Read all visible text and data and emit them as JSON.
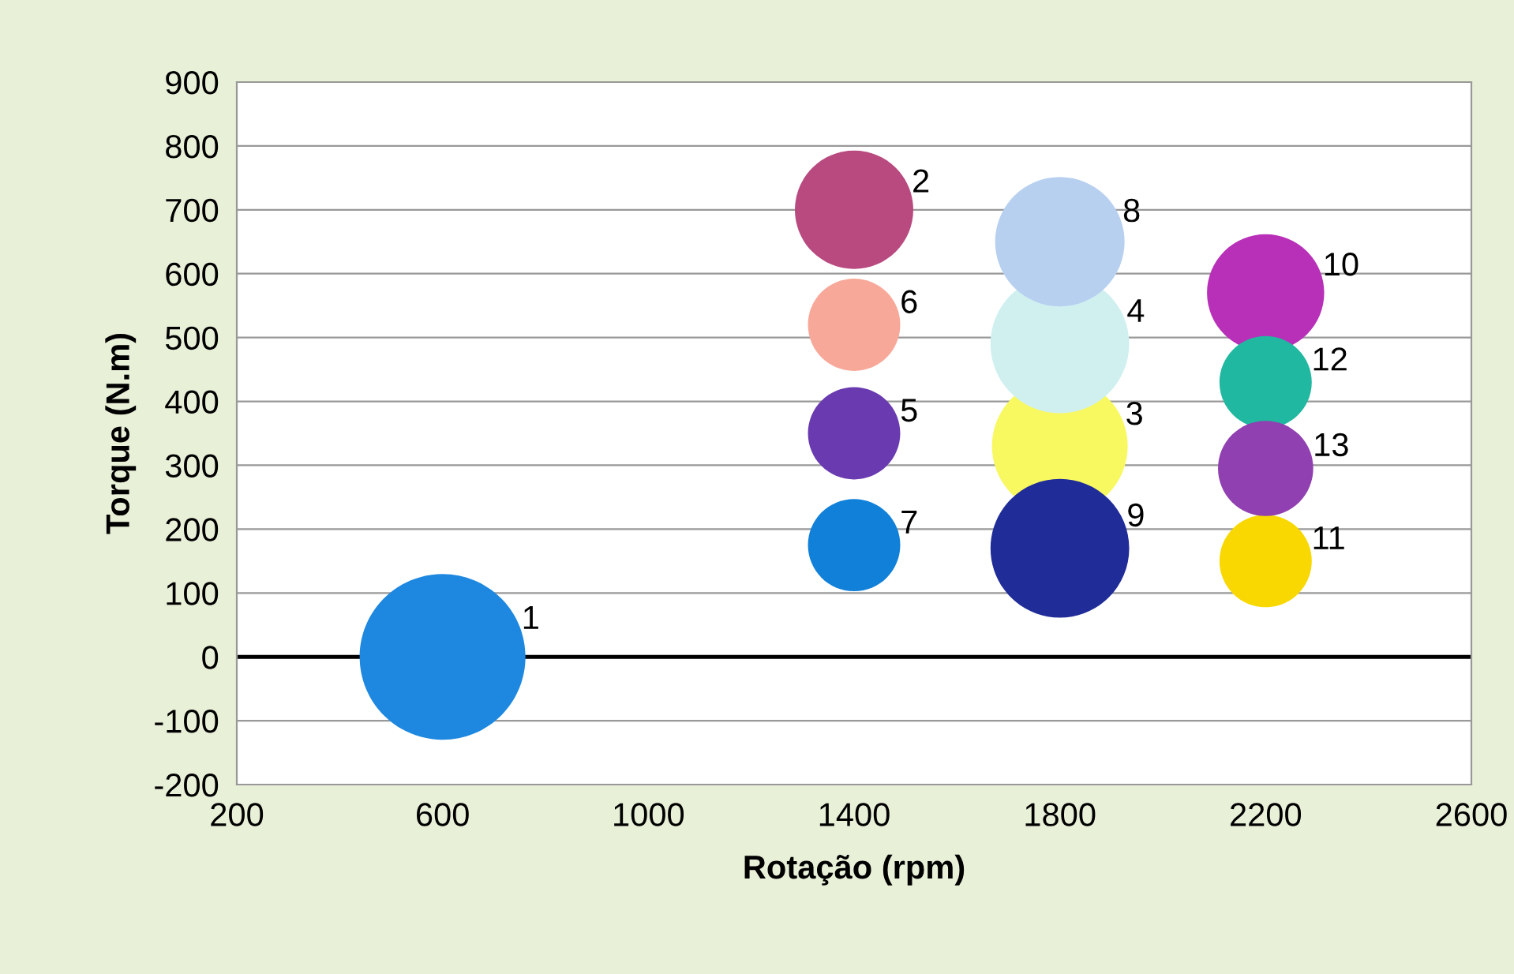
{
  "chart_data": {
    "type": "bubble",
    "xlabel": "Rotação (rpm)",
    "ylabel": "Torque (N.m)",
    "xlim": [
      200,
      2600
    ],
    "xticks": [
      200,
      600,
      1000,
      1400,
      1800,
      2200,
      2600
    ],
    "ylim": [
      -200,
      900
    ],
    "yticks": [
      -200,
      -100,
      0,
      100,
      200,
      300,
      400,
      500,
      600,
      700,
      800,
      900
    ],
    "grid": "y",
    "ref_lines": [
      {
        "axis": "y",
        "value": 0,
        "color": "#000000"
      }
    ],
    "series": [
      {
        "name": "1",
        "color": "#1e88e0",
        "x": [
          600
        ],
        "values": [
          0
        ],
        "sizes": [
          1
        ]
      },
      {
        "name": "2",
        "color": "#b84a80",
        "x": [
          1400
        ],
        "values": [
          700
        ],
        "sizes": [
          0.51
        ]
      },
      {
        "name": "3",
        "color": "#f8f860",
        "x": [
          1800
        ],
        "values": [
          330
        ],
        "sizes": [
          0.67
        ]
      },
      {
        "name": "4",
        "color": "#d0f0f0",
        "x": [
          1800
        ],
        "values": [
          490
        ],
        "sizes": [
          0.7
        ]
      },
      {
        "name": "5",
        "color": "#6a3ab0",
        "x": [
          1400
        ],
        "values": [
          350
        ],
        "sizes": [
          0.31
        ]
      },
      {
        "name": "6",
        "color": "#f8a898",
        "x": [
          1400
        ],
        "values": [
          520
        ],
        "sizes": [
          0.31
        ]
      },
      {
        "name": "7",
        "color": "#1080d8",
        "x": [
          1400
        ],
        "values": [
          175
        ],
        "sizes": [
          0.31
        ]
      },
      {
        "name": "8",
        "color": "#b8d0f0",
        "x": [
          1800
        ],
        "values": [
          650
        ],
        "sizes": [
          0.61
        ]
      },
      {
        "name": "9",
        "color": "#202c98",
        "x": [
          1800
        ],
        "values": [
          170
        ],
        "sizes": [
          0.7
        ]
      },
      {
        "name": "10",
        "color": "#b830b8",
        "x": [
          2200
        ],
        "values": [
          570
        ],
        "sizes": [
          0.5
        ]
      },
      {
        "name": "11",
        "color": "#f8d800",
        "x": [
          2200
        ],
        "values": [
          150
        ],
        "sizes": [
          0.31
        ]
      },
      {
        "name": "12",
        "color": "#20b8a0",
        "x": [
          2200
        ],
        "values": [
          430
        ],
        "sizes": [
          0.31
        ]
      },
      {
        "name": "13",
        "color": "#9040b0",
        "x": [
          2200
        ],
        "values": [
          295
        ],
        "sizes": [
          0.33
        ]
      }
    ]
  }
}
